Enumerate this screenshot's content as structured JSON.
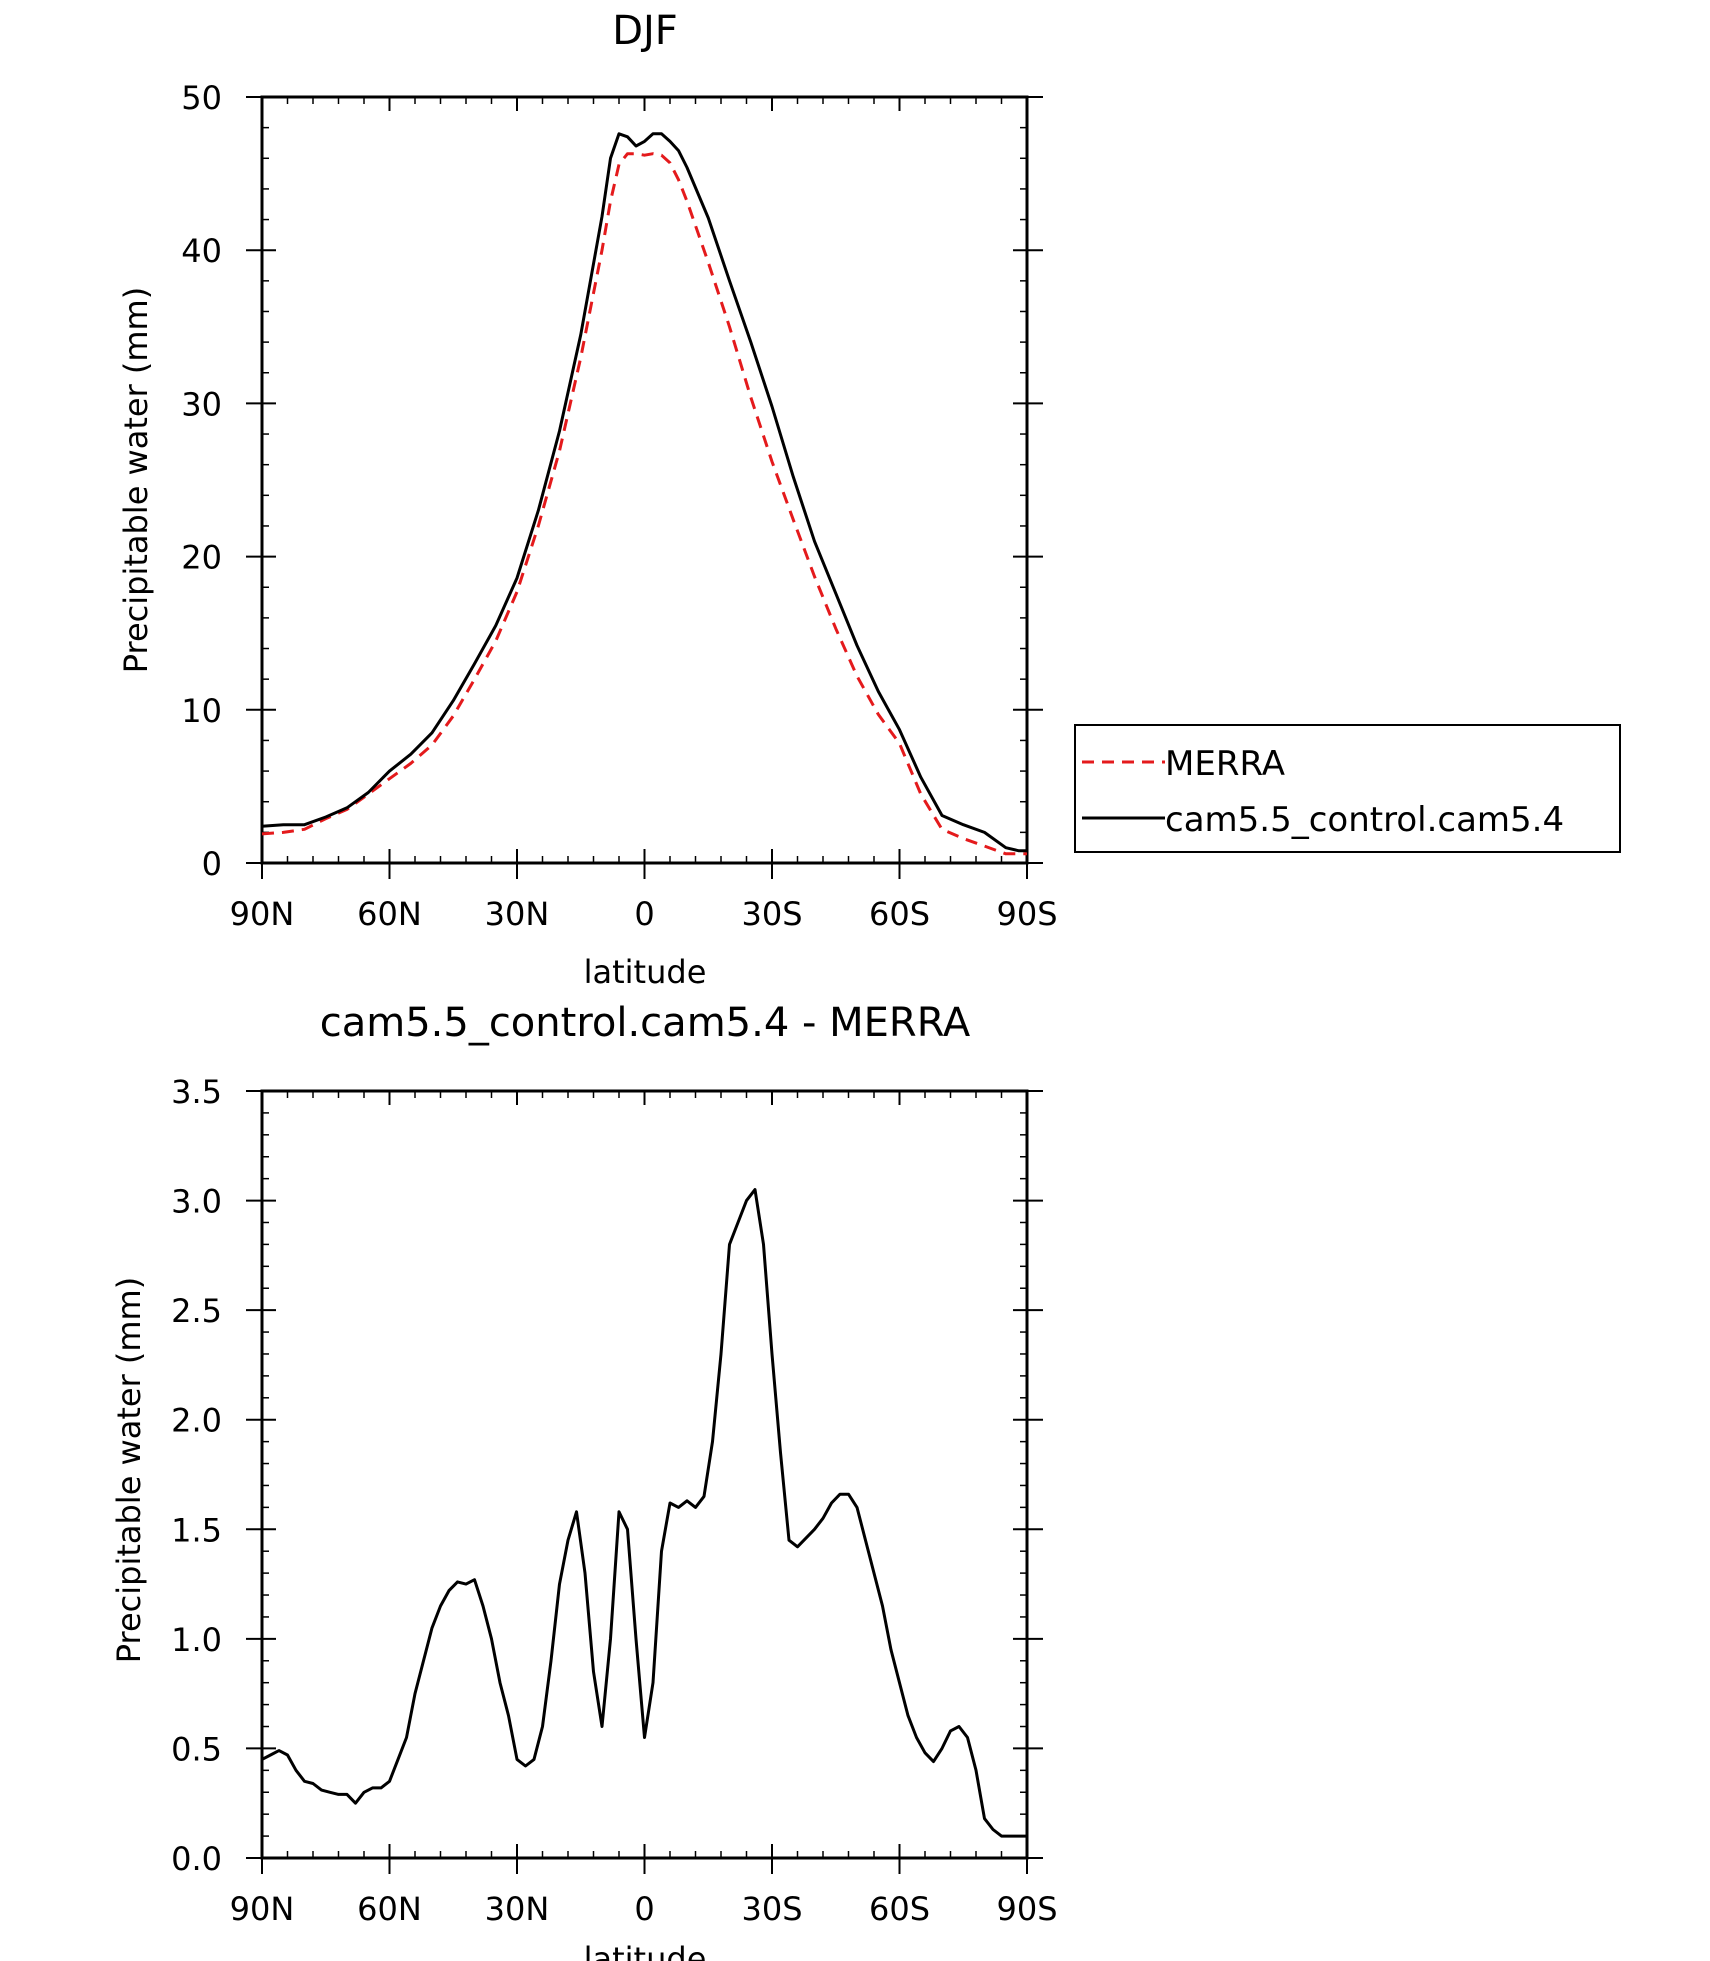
{
  "chart_data": [
    {
      "type": "line",
      "title": "DJF",
      "xlabel": "latitude",
      "ylabel": "Precipitable water (mm)",
      "x_tick_labels": [
        "90N",
        "60N",
        "30N",
        "0",
        "30S",
        "60S",
        "90S"
      ],
      "x_tick_values": [
        90,
        60,
        30,
        0,
        -30,
        -60,
        -90
      ],
      "y_tick_labels": [
        "0",
        "10",
        "20",
        "30",
        "40",
        "50"
      ],
      "y_tick_values": [
        0,
        10,
        20,
        30,
        40,
        50
      ],
      "xlim": [
        90,
        -90
      ],
      "ylim": [
        0,
        50
      ],
      "legend_placement": "right",
      "series": [
        {
          "name": "MERRA",
          "color": "#e41a1c",
          "dash": "dashed",
          "x": [
            90,
            85,
            80,
            75,
            70,
            65,
            60,
            55,
            50,
            45,
            40,
            35,
            30,
            25,
            20,
            15,
            10,
            8,
            6,
            4,
            2,
            0,
            -2,
            -4,
            -6,
            -8,
            -10,
            -15,
            -20,
            -25,
            -30,
            -35,
            -40,
            -45,
            -50,
            -55,
            -60,
            -65,
            -70,
            -75,
            -80,
            -85,
            -88,
            -90
          ],
          "y": [
            1.9,
            2.0,
            2.2,
            2.9,
            3.5,
            4.5,
            5.5,
            6.5,
            7.7,
            9.6,
            12.0,
            14.5,
            17.7,
            22.0,
            26.9,
            33.0,
            40.0,
            43.2,
            45.6,
            46.3,
            46.3,
            46.2,
            46.3,
            46.2,
            45.7,
            44.6,
            43.2,
            39.2,
            35.0,
            30.4,
            26.2,
            22.4,
            18.7,
            15.3,
            12.2,
            9.7,
            7.8,
            4.5,
            2.2,
            1.6,
            1.1,
            0.6,
            0.6,
            0.6
          ]
        },
        {
          "name": "cam5.5_control.cam5.4",
          "color": "#000000",
          "dash": "solid",
          "x": [
            90,
            85,
            80,
            75,
            70,
            65,
            60,
            55,
            50,
            45,
            40,
            35,
            30,
            25,
            20,
            15,
            10,
            8,
            6,
            4,
            2,
            0,
            -2,
            -4,
            -6,
            -8,
            -10,
            -15,
            -20,
            -25,
            -30,
            -35,
            -40,
            -45,
            -50,
            -55,
            -60,
            -65,
            -70,
            -75,
            -80,
            -85,
            -88,
            -90
          ],
          "y": [
            2.4,
            2.5,
            2.5,
            3.0,
            3.6,
            4.6,
            6.0,
            7.1,
            8.5,
            10.6,
            13.0,
            15.5,
            18.6,
            23.0,
            28.2,
            34.5,
            42.2,
            46.0,
            47.6,
            47.4,
            46.8,
            47.1,
            47.6,
            47.6,
            47.1,
            46.5,
            45.4,
            42.1,
            38.0,
            34.0,
            29.8,
            25.2,
            21.0,
            17.6,
            14.2,
            11.2,
            8.7,
            5.6,
            3.1,
            2.5,
            2.0,
            1.0,
            0.8,
            0.8
          ]
        }
      ]
    },
    {
      "type": "line",
      "title": "cam5.5_control.cam5.4 - MERRA",
      "xlabel": "latitude",
      "ylabel": "Precipitable water (mm)",
      "x_tick_labels": [
        "90N",
        "60N",
        "30N",
        "0",
        "30S",
        "60S",
        "90S"
      ],
      "x_tick_values": [
        90,
        60,
        30,
        0,
        -30,
        -60,
        -90
      ],
      "y_tick_labels": [
        "0.0",
        "0.5",
        "1.0",
        "1.5",
        "2.0",
        "2.5",
        "3.0",
        "3.5"
      ],
      "y_tick_values": [
        0,
        0.5,
        1.0,
        1.5,
        2.0,
        2.5,
        3.0,
        3.5
      ],
      "xlim": [
        90,
        -90
      ],
      "ylim": [
        0,
        3.5
      ],
      "series": [
        {
          "color": "#000000",
          "dash": "solid",
          "x": [
            90,
            88,
            86,
            84,
            82,
            80,
            78,
            76,
            74,
            72,
            70,
            68,
            66,
            64,
            62,
            60,
            58,
            56,
            54,
            52,
            50,
            48,
            46,
            44,
            42,
            40,
            38,
            36,
            34,
            32,
            30,
            28,
            26,
            24,
            22,
            20,
            18,
            16,
            14,
            12,
            10,
            8,
            6,
            4,
            2,
            0,
            -2,
            -4,
            -6,
            -8,
            -10,
            -12,
            -14,
            -16,
            -18,
            -20,
            -22,
            -24,
            -26,
            -28,
            -30,
            -32,
            -34,
            -36,
            -38,
            -40,
            -42,
            -44,
            -46,
            -48,
            -50,
            -52,
            -54,
            -56,
            -58,
            -60,
            -62,
            -64,
            -66,
            -68,
            -70,
            -72,
            -74,
            -76,
            -78,
            -80,
            -82,
            -84,
            -86,
            -88,
            -90
          ],
          "y": [
            0.45,
            0.47,
            0.49,
            0.47,
            0.4,
            0.35,
            0.34,
            0.31,
            0.3,
            0.29,
            0.29,
            0.25,
            0.3,
            0.32,
            0.32,
            0.35,
            0.45,
            0.55,
            0.75,
            0.9,
            1.05,
            1.15,
            1.22,
            1.26,
            1.25,
            1.27,
            1.15,
            1.0,
            0.8,
            0.65,
            0.45,
            0.42,
            0.45,
            0.6,
            0.9,
            1.25,
            1.45,
            1.58,
            1.3,
            0.85,
            0.6,
            1.0,
            1.58,
            1.5,
            1.0,
            0.55,
            0.8,
            1.4,
            1.62,
            1.6,
            1.63,
            1.6,
            1.65,
            1.9,
            2.3,
            2.8,
            2.9,
            3.0,
            3.05,
            2.8,
            2.3,
            1.85,
            1.45,
            1.42,
            1.46,
            1.5,
            1.55,
            1.62,
            1.66,
            1.66,
            1.6,
            1.45,
            1.3,
            1.15,
            0.95,
            0.8,
            0.65,
            0.55,
            0.48,
            0.44,
            0.5,
            0.58,
            0.6,
            0.55,
            0.4,
            0.18,
            0.13,
            0.1,
            0.1,
            0.1,
            0.1
          ]
        }
      ]
    }
  ]
}
